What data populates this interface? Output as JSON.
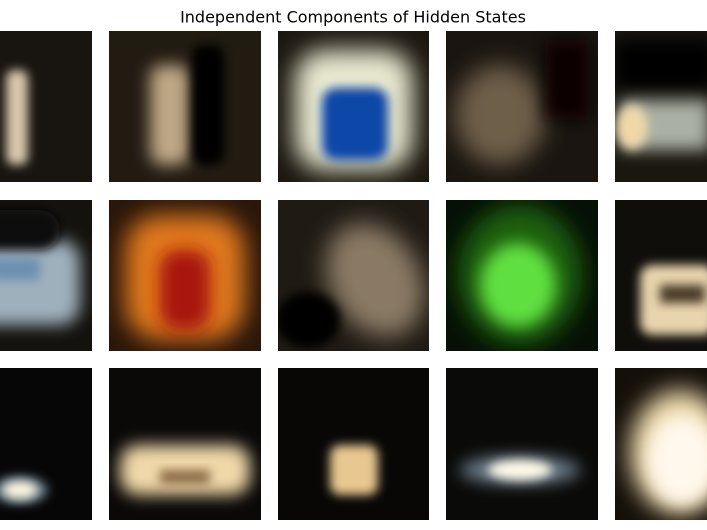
{
  "title": "Independent Components of Hidden States"
}
